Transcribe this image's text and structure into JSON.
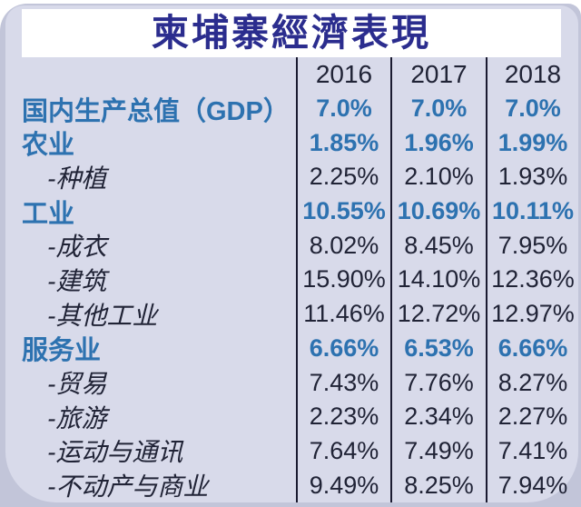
{
  "page": {
    "title": "柬埔寨經濟表現"
  },
  "colors": {
    "accent_blue": "#2d72b0",
    "title_navy": "#2b2d8e",
    "dark_text": "#202336",
    "divider_line": "#1a1a30",
    "card_background": "#d8daea",
    "outer_background": "#c2c5d9",
    "title_band_background": "#ffffff"
  },
  "chart_data": {
    "type": "table",
    "title": "柬埔寨經濟表現",
    "columns": [
      "2016",
      "2017",
      "2018"
    ],
    "rows": [
      {
        "label": "国内生产总值（GDP）",
        "style": "major",
        "values": [
          "7.0%",
          "7.0%",
          "7.0%"
        ]
      },
      {
        "label": "农业",
        "style": "major",
        "values": [
          "1.85%",
          "1.96%",
          "1.99%"
        ]
      },
      {
        "label": "-种植",
        "style": "sub",
        "values": [
          "2.25%",
          "2.10%",
          "1.93%"
        ]
      },
      {
        "label": "工业",
        "style": "major",
        "values": [
          "10.55%",
          "10.69%",
          "10.11%"
        ]
      },
      {
        "label": "-成衣",
        "style": "sub",
        "values": [
          "8.02%",
          "8.45%",
          "7.95%"
        ]
      },
      {
        "label": "-建筑",
        "style": "sub",
        "values": [
          "15.90%",
          "14.10%",
          "12.36%"
        ]
      },
      {
        "label": "-其他工业",
        "style": "sub",
        "values": [
          "11.46%",
          "12.72%",
          "12.97%"
        ]
      },
      {
        "label": "服务业",
        "style": "major",
        "values": [
          "6.66%",
          "6.53%",
          "6.66%"
        ]
      },
      {
        "label": "-贸易",
        "style": "sub",
        "values": [
          "7.43%",
          "7.76%",
          "8.27%"
        ]
      },
      {
        "label": "-旅游",
        "style": "sub",
        "values": [
          "2.23%",
          "2.34%",
          "2.27%"
        ]
      },
      {
        "label": "-运动与通讯",
        "style": "sub",
        "values": [
          "7.64%",
          "7.49%",
          "7.41%"
        ]
      },
      {
        "label": "-不动产与商业",
        "style": "sub",
        "values": [
          "9.49%",
          "8.25%",
          "7.94%"
        ]
      }
    ]
  }
}
